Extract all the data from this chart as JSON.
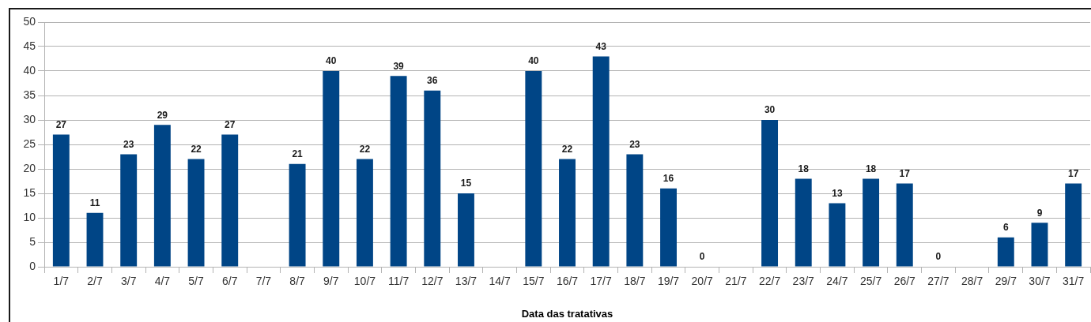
{
  "chart_data": {
    "type": "bar",
    "xlabel": "Data das tratativas",
    "categories": [
      "1/7",
      "2/7",
      "3/7",
      "4/7",
      "5/7",
      "6/7",
      "7/7",
      "8/7",
      "9/7",
      "10/7",
      "11/7",
      "12/7",
      "13/7",
      "14/7",
      "15/7",
      "16/7",
      "17/7",
      "18/7",
      "19/7",
      "20/7",
      "21/7",
      "22/7",
      "23/7",
      "24/7",
      "25/7",
      "26/7",
      "27/7",
      "28/7",
      "29/7",
      "30/7",
      "31/7"
    ],
    "values": [
      27,
      11,
      23,
      29,
      22,
      27,
      null,
      21,
      40,
      22,
      39,
      36,
      15,
      null,
      40,
      22,
      43,
      23,
      16,
      0,
      null,
      30,
      18,
      13,
      18,
      17,
      0,
      null,
      6,
      9,
      17
    ],
    "color": "#004586",
    "ylim": [
      0,
      50
    ],
    "yticks": [
      0,
      5,
      10,
      15,
      20,
      25,
      30,
      35,
      40,
      45,
      50
    ],
    "grid": "y",
    "data_labels": true
  }
}
